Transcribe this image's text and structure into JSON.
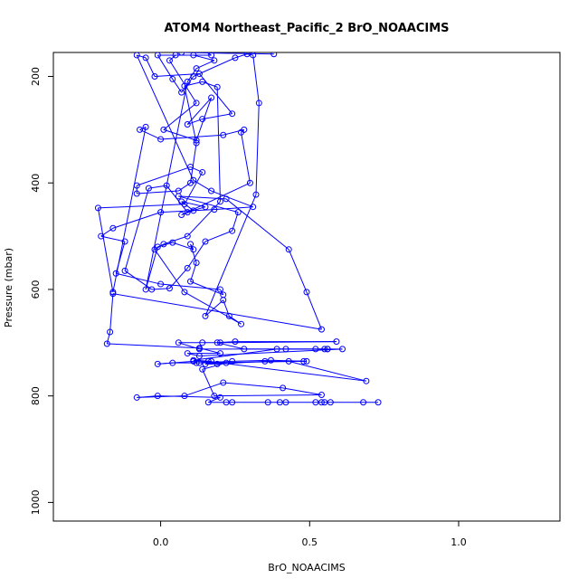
{
  "chart_data": {
    "type": "line",
    "title": "ATOM4 Northeast_Pacific_2 BrO_NOAACIMS",
    "xlabel": "BrO_NOAACIMS",
    "ylabel": "Pressure (mbar)",
    "xlim": [
      -0.36,
      1.34
    ],
    "ylim": [
      1035,
      155
    ],
    "y_reversed": true,
    "x_ticks": [
      0.0,
      0.5,
      1.0
    ],
    "x_tick_labels": [
      "0.0",
      "0.5",
      "1.0"
    ],
    "y_ticks": [
      200,
      400,
      600,
      800,
      1000
    ],
    "y_tick_labels": [
      "200",
      "400",
      "600",
      "800",
      "1000"
    ],
    "grid": false,
    "legend": "none",
    "colors": {
      "series": "#0000ff",
      "axis": "#000000",
      "background": "#ffffff"
    },
    "marker": "open-circle",
    "series": [
      {
        "x": [
          0.73,
          0.68,
          0.57,
          0.55,
          0.54,
          0.52,
          0.42,
          0.4,
          0.36,
          0.24,
          0.22,
          0.16,
          0.2,
          -0.01,
          -0.08,
          0.08,
          0.21,
          0.41,
          0.54,
          0.18,
          0.14,
          0.22,
          0.15,
          0.19,
          0.35,
          0.49,
          0.37,
          0.24,
          0.12,
          0.04,
          -0.01,
          0.11,
          0.16,
          0.69,
          0.43,
          0.48,
          0.13,
          0.17,
          0.11,
          0.39,
          0.52,
          0.55,
          0.56,
          0.42,
          0.13,
          0.06,
          0.14,
          0.2,
          0.59,
          0.25,
          0.19,
          0.28,
          0.56,
          0.61,
          0.13,
          0.09,
          0.2,
          0.13,
          -0.18,
          -0.17,
          -0.16,
          0.54,
          0.49,
          0.43,
          0.22,
          0.06,
          0.26,
          0.24,
          0.15,
          0.09,
          0.03,
          -0.03,
          -0.12,
          -0.04,
          0.02,
          0.09,
          0.15,
          0.07,
          0.11,
          0.07,
          0.3,
          0.27,
          0.28,
          0.21,
          0.0,
          -0.07,
          -0.05,
          -0.16,
          -0.21,
          0.08,
          0.14,
          0.1,
          -0.08,
          -0.08,
          0.06,
          0.1,
          0.12,
          0.08,
          0.14,
          0.19,
          0.2,
          0.09,
          0.01,
          -0.02,
          0.08,
          0.27,
          0.23,
          0.21,
          0.15,
          0.32,
          0.33,
          0.31,
          0.29,
          0.25,
          0.11,
          0.07,
          0.04,
          -0.01,
          0.11,
          0.18,
          0.12,
          0.09,
          -0.05,
          -0.01,
          0.04,
          0.11,
          0.1,
          0.12,
          0.1,
          0.21,
          0.2,
          0.0,
          -0.15,
          -0.12,
          -0.2,
          -0.16,
          0.0,
          0.18,
          0.31,
          0.17,
          0.11,
          -0.08,
          -0.05,
          -0.02,
          0.13,
          0.24,
          0.14,
          0.09,
          0.17,
          0.12,
          0.01,
          0.12,
          0.03,
          0.05,
          0.17,
          0.14,
          0.07,
          0.38
        ],
        "y": [
          812,
          812,
          812,
          812,
          812,
          812,
          812,
          812,
          812,
          812,
          812,
          812,
          803,
          800,
          803,
          800,
          775,
          785,
          798,
          800,
          750,
          738,
          740,
          740,
          735,
          735,
          733,
          735,
          738,
          738,
          740,
          735,
          735,
          772,
          735,
          735,
          738,
          735,
          733,
          712,
          712,
          712,
          712,
          712,
          712,
          700,
          700,
          700,
          698,
          698,
          700,
          712,
          712,
          712,
          725,
          720,
          720,
          710,
          702,
          680,
          608,
          675,
          605,
          525,
          430,
          425,
          455,
          490,
          510,
          560,
          598,
          600,
          565,
          410,
          405,
          455,
          445,
          435,
          452,
          460,
          400,
          305,
          300,
          310,
          318,
          300,
          295,
          605,
          447,
          440,
          380,
          370,
          405,
          420,
          415,
          400,
          325,
          218,
          210,
          220,
          435,
          500,
          515,
          525,
          605,
          665,
          650,
          620,
          650,
          422,
          250,
          160,
          158,
          165,
          200,
          230,
          205,
          160,
          160,
          170,
          185,
          210,
          600,
          520,
          512,
          525,
          515,
          550,
          585,
          610,
          600,
          590,
          570,
          510,
          500,
          485,
          455,
          450,
          445,
          415,
          395,
          160,
          165,
          200,
          195,
          270,
          280,
          290,
          240,
          320,
          300,
          250,
          170,
          160,
          160,
          150,
          155,
          158
        ]
      }
    ]
  }
}
